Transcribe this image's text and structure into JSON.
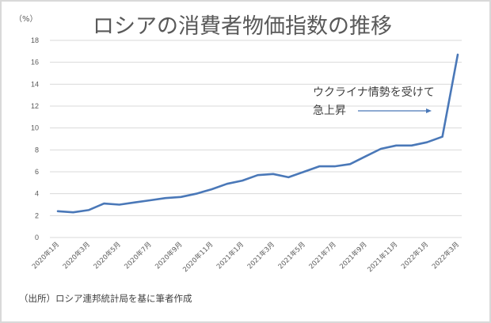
{
  "title": "ロシアの消費者物価指数の推移",
  "unit_label": "（%）",
  "source": "（出所）ロシア連邦統計局を基に筆者作成",
  "annotation": {
    "line1": "ウクライナ情勢を受けて",
    "line2": "急上昇"
  },
  "colors": {
    "line": "#4a78b8",
    "grid": "#d9d9d9",
    "text": "#595959",
    "border": "#d9d9d9"
  },
  "chart_data": {
    "type": "line",
    "title": "ロシアの消費者物価指数の推移",
    "xlabel": "",
    "ylabel": "（%）",
    "ylim": [
      0,
      18
    ],
    "yticks": [
      0,
      2,
      4,
      6,
      8,
      10,
      12,
      14,
      16,
      18
    ],
    "grid": true,
    "legend": null,
    "x_tick_labels": [
      "2020年1月",
      "2020年3月",
      "2020年5月",
      "2020年7月",
      "2020年9月",
      "2020年11月",
      "2021年1月",
      "2021年3月",
      "2021年5月",
      "2021年7月",
      "2021年9月",
      "2021年11月",
      "2022年1月",
      "2022年3月"
    ],
    "categories": [
      "2020年1月",
      "2020年2月",
      "2020年3月",
      "2020年4月",
      "2020年5月",
      "2020年6月",
      "2020年7月",
      "2020年8月",
      "2020年9月",
      "2020年10月",
      "2020年11月",
      "2020年12月",
      "2021年1月",
      "2021年2月",
      "2021年3月",
      "2021年4月",
      "2021年5月",
      "2021年6月",
      "2021年7月",
      "2021年8月",
      "2021年9月",
      "2021年10月",
      "2021年11月",
      "2021年12月",
      "2022年1月",
      "2022年2月",
      "2022年3月"
    ],
    "series": [
      {
        "name": "消費者物価指数（前年同月比）",
        "values": [
          2.4,
          2.3,
          2.5,
          3.1,
          3.0,
          3.2,
          3.4,
          3.6,
          3.7,
          4.0,
          4.4,
          4.9,
          5.2,
          5.7,
          5.8,
          5.5,
          6.0,
          6.5,
          6.5,
          6.7,
          7.4,
          8.1,
          8.4,
          8.4,
          8.7,
          9.2,
          16.7
        ]
      }
    ],
    "annotations": [
      {
        "text": "ウクライナ情勢を受けて 急上昇",
        "arrow_to": "2022年2月"
      }
    ]
  }
}
